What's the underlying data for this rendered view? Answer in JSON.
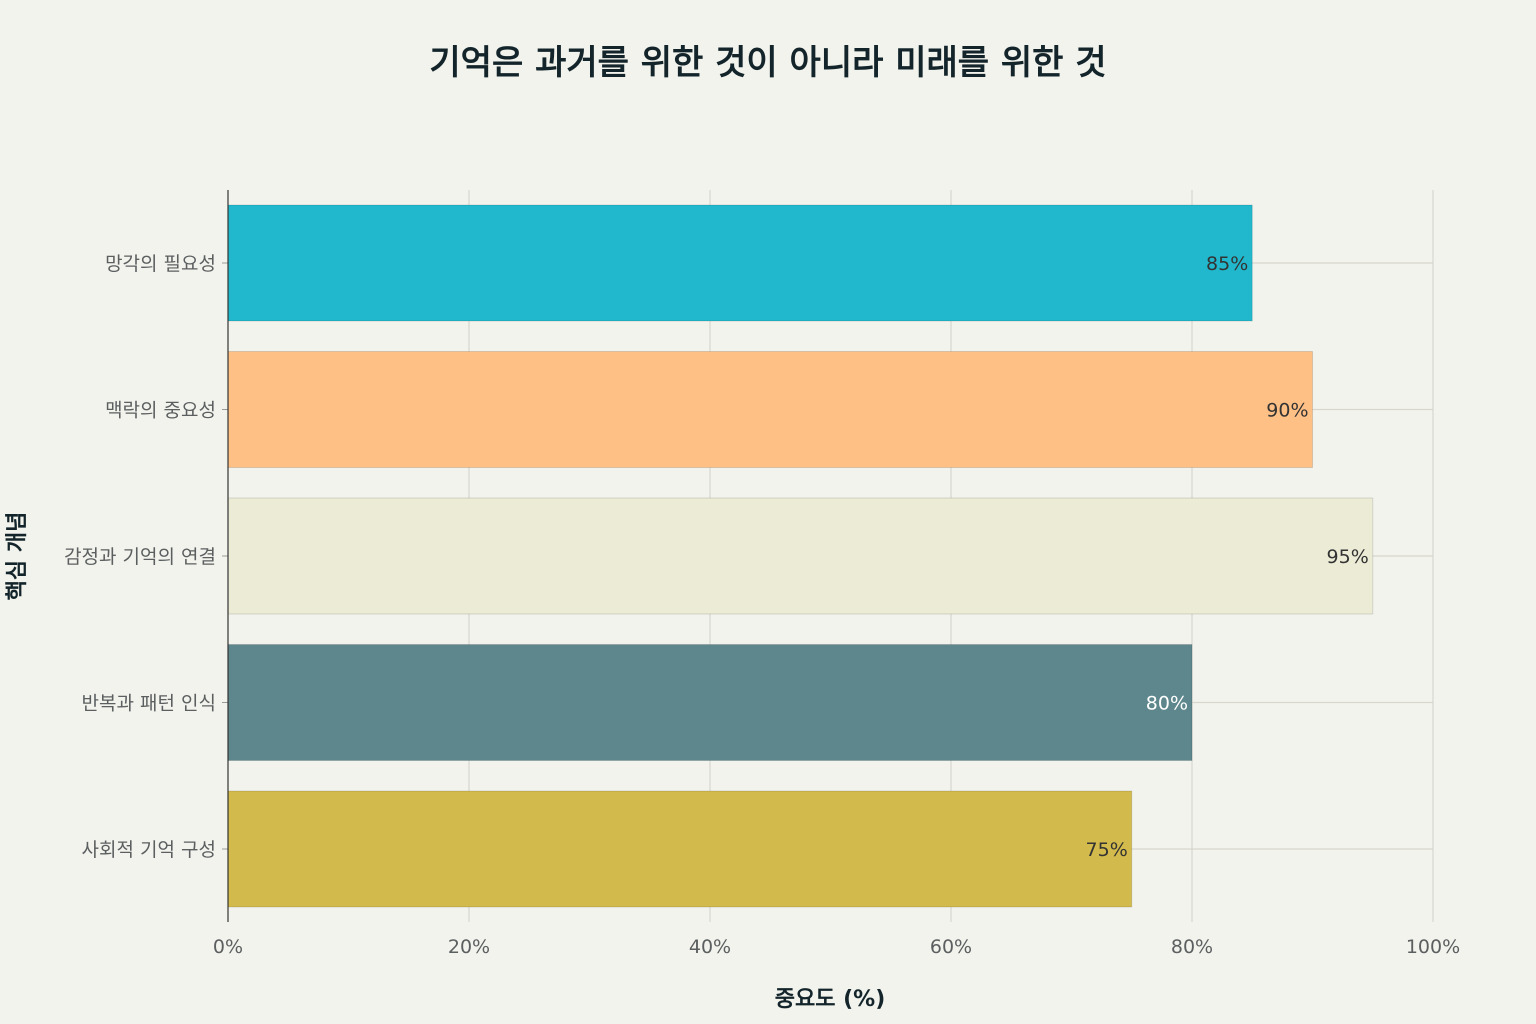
{
  "chart_data": {
    "type": "bar",
    "orientation": "horizontal",
    "title": "기억은 과거를 위한 것이 아니라 미래를 위한 것",
    "xlabel": "중요도 (%)",
    "ylabel": "핵심 개념",
    "categories": [
      "망각의 필요성",
      "맥락의 중요성",
      "감정과 기억의 연결",
      "반복과 패턴 인식",
      "사회적 기억 구성"
    ],
    "values": [
      85,
      90,
      95,
      80,
      75
    ],
    "value_labels": [
      "85%",
      "90%",
      "95%",
      "80%",
      "75%"
    ],
    "colors": [
      "#21b8cd",
      "#ffc086",
      "#ecebd5",
      "#5d878c",
      "#d2ba4c"
    ],
    "label_colors": [
      "#333333",
      "#333333",
      "#333333",
      "#ffffff",
      "#333333"
    ],
    "xlim": [
      0,
      100
    ],
    "xticks": [
      0,
      20,
      40,
      60,
      80,
      100
    ],
    "xtick_labels": [
      "0%",
      "20%",
      "40%",
      "60%",
      "80%",
      "100%"
    ],
    "grid": true,
    "legend": "none"
  }
}
